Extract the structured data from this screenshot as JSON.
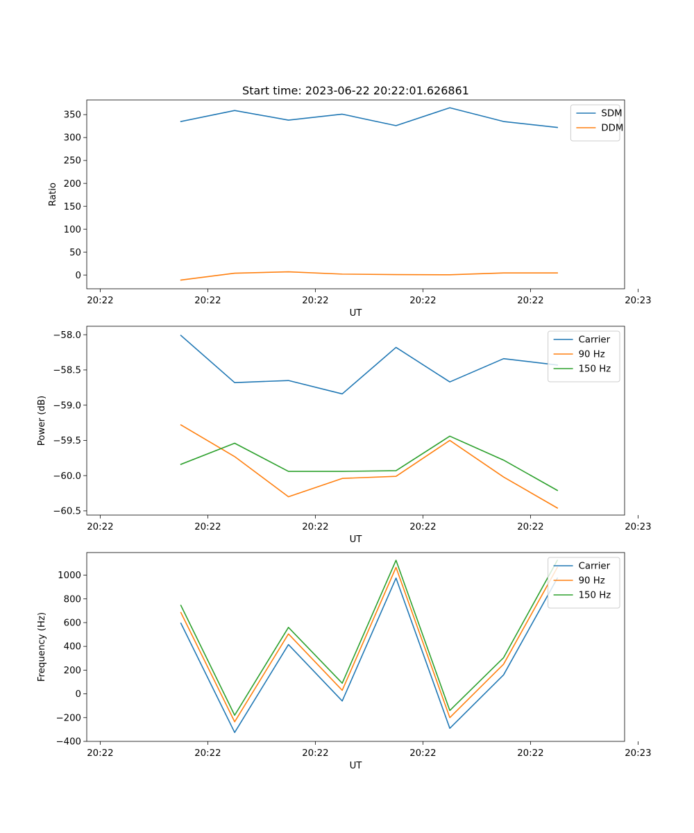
{
  "figure": {
    "title": "Start time: 2023-06-22 20:22:01.626861"
  },
  "chart_data": [
    {
      "type": "line",
      "title": "Start time: 2023-06-22 20:22:01.626861",
      "xlabel": "UT",
      "ylabel": "Ratio",
      "x": [
        1,
        2,
        3,
        4,
        5,
        6,
        7,
        8
      ],
      "xlim": [
        -0.75,
        9.25
      ],
      "xticks": [
        -0.5,
        1.5,
        3.5,
        5.5,
        7.5,
        9.5
      ],
      "xtick_labels": [
        "20:22",
        "20:22",
        "20:22",
        "20:22",
        "20:22",
        "20:23"
      ],
      "ylim": [
        -30,
        382
      ],
      "yticks": [
        0,
        50,
        100,
        150,
        200,
        250,
        300,
        350
      ],
      "ytick_labels": [
        "0",
        "50",
        "100",
        "150",
        "200",
        "250",
        "300",
        "350"
      ],
      "legend": "top-right",
      "series": [
        {
          "name": "SDM",
          "color": "#1f77b4",
          "values": [
            335,
            359,
            338,
            351,
            326,
            365,
            335,
            322
          ]
        },
        {
          "name": "DDM",
          "color": "#ff7f0e",
          "values": [
            -11,
            4,
            7,
            2,
            1,
            0.5,
            4.5,
            4.5
          ]
        }
      ]
    },
    {
      "type": "line",
      "xlabel": "UT",
      "ylabel": "Power (dB)",
      "x": [
        1,
        2,
        3,
        4,
        5,
        6,
        7,
        8
      ],
      "xlim": [
        -0.75,
        9.25
      ],
      "xticks": [
        -0.5,
        1.5,
        3.5,
        5.5,
        7.5,
        9.5
      ],
      "xtick_labels": [
        "20:22",
        "20:22",
        "20:22",
        "20:22",
        "20:22",
        "20:23"
      ],
      "ylim": [
        -60.56,
        -57.88
      ],
      "yticks": [
        -60.5,
        -60.0,
        -59.5,
        -59.0,
        -58.5,
        -58.0
      ],
      "ytick_labels": [
        "−60.5",
        "−60.0",
        "−59.5",
        "−59.0",
        "−58.5",
        "−58.0"
      ],
      "legend": "top-right",
      "series": [
        {
          "name": "Carrier",
          "color": "#1f77b4",
          "values": [
            -58.01,
            -58.68,
            -58.65,
            -58.84,
            -58.18,
            -58.67,
            -58.34,
            -58.43
          ]
        },
        {
          "name": "90 Hz",
          "color": "#ff7f0e",
          "values": [
            -59.28,
            -59.73,
            -60.3,
            -60.04,
            -60.01,
            -59.5,
            -60.02,
            -60.46
          ]
        },
        {
          "name": "150 Hz",
          "color": "#2ca02c",
          "values": [
            -59.84,
            -59.54,
            -59.94,
            -59.94,
            -59.93,
            -59.44,
            -59.78,
            -60.21
          ]
        }
      ]
    },
    {
      "type": "line",
      "xlabel": "UT",
      "ylabel": "Frequency (Hz)",
      "x": [
        1,
        2,
        3,
        4,
        5,
        6,
        7,
        8
      ],
      "xlim": [
        -0.75,
        9.25
      ],
      "xticks": [
        -0.5,
        1.5,
        3.5,
        5.5,
        7.5,
        9.5
      ],
      "xtick_labels": [
        "20:22",
        "20:22",
        "20:22",
        "20:22",
        "20:22",
        "20:23"
      ],
      "ylim": [
        -400,
        1190
      ],
      "yticks": [
        -400,
        -200,
        0,
        200,
        400,
        600,
        800,
        1000
      ],
      "ytick_labels": [
        "−400",
        "−200",
        "0",
        "200",
        "400",
        "600",
        "800",
        "1000"
      ],
      "legend": "top-right",
      "series": [
        {
          "name": "Carrier",
          "color": "#1f77b4",
          "values": [
            595,
            -325,
            415,
            -60,
            975,
            -290,
            160,
            975
          ]
        },
        {
          "name": "90 Hz",
          "color": "#ff7f0e",
          "values": [
            685,
            -235,
            505,
            30,
            1065,
            -200,
            250,
            1065
          ]
        },
        {
          "name": "150 Hz",
          "color": "#2ca02c",
          "values": [
            745,
            -180,
            560,
            90,
            1125,
            -140,
            305,
            1125
          ]
        }
      ]
    }
  ]
}
